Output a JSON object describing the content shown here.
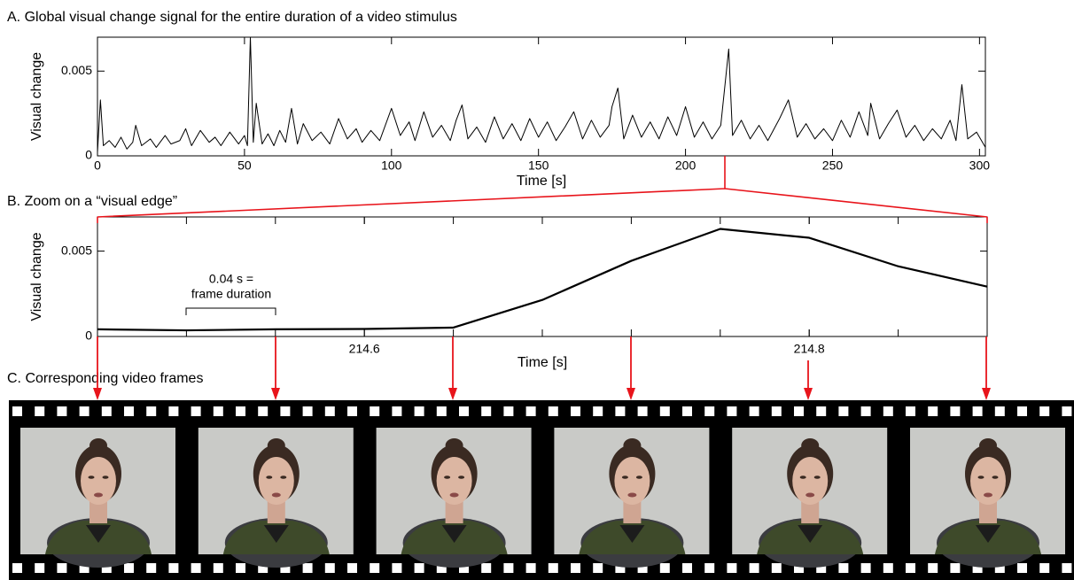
{
  "chart_data": [
    {
      "type": "line",
      "title": "A. Global visual change signal for the entire duration of a video stimulus",
      "x_label": "Time [s]",
      "y_label": "Visual change",
      "color": "#000000",
      "xlim": [
        0,
        302
      ],
      "ylim": [
        0,
        0.007
      ],
      "xticks": [
        0,
        50,
        100,
        150,
        200,
        250,
        300
      ],
      "yticks": [
        0,
        0.005
      ],
      "x": [
        0,
        1,
        2,
        4,
        6,
        8,
        10,
        12,
        13,
        15,
        18,
        20,
        23,
        25,
        28,
        30,
        32,
        35,
        38,
        40,
        42,
        45,
        48,
        50,
        51,
        52,
        53,
        54,
        56,
        58,
        60,
        62,
        64,
        66,
        68,
        70,
        73,
        76,
        79,
        82,
        85,
        88,
        90,
        93,
        96,
        100,
        103,
        106,
        108,
        111,
        114,
        117,
        120,
        122,
        124,
        126,
        129,
        132,
        135,
        138,
        141,
        144,
        147,
        150,
        153,
        156,
        159,
        162,
        165,
        168,
        171,
        174,
        175,
        177,
        179,
        182,
        185,
        188,
        191,
        194,
        197,
        200,
        203,
        206,
        209,
        212,
        214.7,
        216,
        219,
        222,
        225,
        228,
        232,
        235,
        238,
        241,
        244,
        247,
        250,
        253,
        256,
        259,
        262,
        263,
        266,
        269,
        272,
        275,
        278,
        281,
        284,
        287,
        290,
        292,
        294,
        296,
        299,
        302
      ],
      "values": [
        0.0002,
        0.0033,
        0.0006,
        0.0009,
        0.0005,
        0.0011,
        0.0004,
        0.0008,
        0.0018,
        0.0006,
        0.001,
        0.0005,
        0.0012,
        0.0007,
        0.0009,
        0.0016,
        0.0006,
        0.0015,
        0.0008,
        0.0011,
        0.0006,
        0.0014,
        0.0007,
        0.0012,
        0.0006,
        0.007,
        0.0008,
        0.0031,
        0.0007,
        0.0013,
        0.0006,
        0.0015,
        0.0008,
        0.0028,
        0.0007,
        0.0019,
        0.0009,
        0.0014,
        0.0007,
        0.0022,
        0.001,
        0.0016,
        0.0008,
        0.0015,
        0.0009,
        0.0028,
        0.0012,
        0.002,
        0.0009,
        0.0026,
        0.0011,
        0.0018,
        0.0009,
        0.0021,
        0.003,
        0.001,
        0.0017,
        0.0008,
        0.0023,
        0.001,
        0.0019,
        0.0009,
        0.0022,
        0.0011,
        0.002,
        0.0009,
        0.0017,
        0.0026,
        0.001,
        0.0021,
        0.0011,
        0.0018,
        0.0029,
        0.004,
        0.001,
        0.0024,
        0.0011,
        0.002,
        0.001,
        0.0023,
        0.0012,
        0.0029,
        0.0011,
        0.002,
        0.001,
        0.0018,
        0.0063,
        0.0012,
        0.0021,
        0.001,
        0.0018,
        0.0009,
        0.0022,
        0.0033,
        0.0011,
        0.0019,
        0.001,
        0.0016,
        0.0009,
        0.0021,
        0.0011,
        0.0026,
        0.0012,
        0.0031,
        0.001,
        0.0019,
        0.0027,
        0.0011,
        0.0018,
        0.0009,
        0.0016,
        0.001,
        0.0021,
        0.0009,
        0.0042,
        0.001,
        0.0014,
        0.0005
      ]
    },
    {
      "type": "line",
      "title": "B. Zoom on a “visual edge”",
      "x_label": "Time [s]",
      "y_label": "Visual change",
      "color": "#000000",
      "xlim": [
        214.48,
        214.88
      ],
      "ylim": [
        0,
        0.007
      ],
      "xticks": [
        214.6,
        214.8
      ],
      "yticks": [
        0,
        0.005
      ],
      "annotations": [
        "0.04 s =",
        "frame duration"
      ],
      "x": [
        214.48,
        214.52,
        214.56,
        214.6,
        214.64,
        214.68,
        214.72,
        214.76,
        214.8,
        214.84,
        214.88
      ],
      "values": [
        0.00042,
        0.00036,
        0.00042,
        0.00044,
        0.00052,
        0.00214,
        0.00443,
        0.0063,
        0.00578,
        0.00411,
        0.00292
      ]
    }
  ],
  "panel_c": {
    "title": "C. Corresponding video frames"
  }
}
